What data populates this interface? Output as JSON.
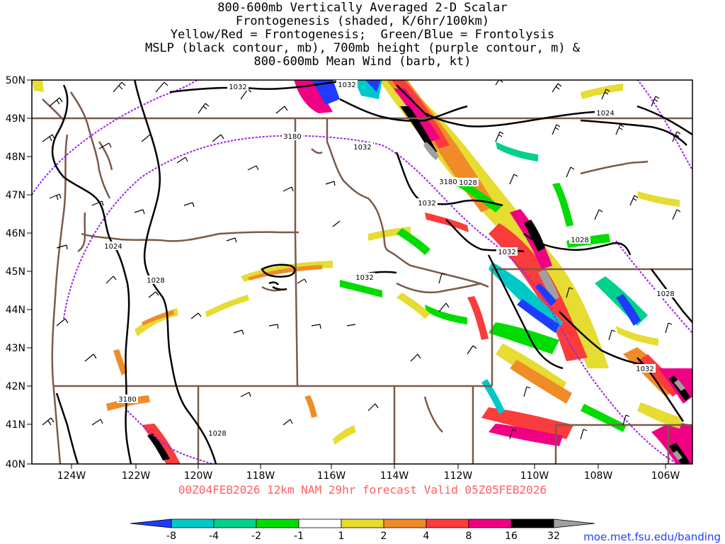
{
  "title_lines": [
    "800-600mb Vertically Averaged 2-D Scalar",
    "Frontogenesis (shaded, K/6hr/100km)",
    "Yellow/Red = Frontogenesis;  Green/Blue = Frontolysis",
    "MSLP (black contour, mb), 700mb height (purple contour, m) &",
    "800-600mb Mean Wind (barb, kt)"
  ],
  "lat_labels": [
    "50N",
    "49N",
    "48N",
    "47N",
    "46N",
    "45N",
    "44N",
    "43N",
    "42N",
    "41N",
    "40N"
  ],
  "lon_labels": [
    "124W",
    "122W",
    "120W",
    "118W",
    "116W",
    "114W",
    "112W",
    "110W",
    "108W",
    "106W"
  ],
  "contour_labels": {
    "mslp": [
      "1032",
      "1032",
      "1032",
      "1024",
      "1032",
      "1028",
      "1028",
      "1024",
      "1028",
      "1032",
      "1032",
      "1028",
      "1032",
      "1028"
    ],
    "height": [
      "3180",
      "3180",
      "3180"
    ]
  },
  "valid_text": "00Z04FEB2026 12km NAM 29hr forecast Valid 05Z05FEB2026",
  "colorbar": {
    "labels": [
      "-8",
      "-4",
      "-2",
      "-1",
      "1",
      "2",
      "4",
      "8",
      "16",
      "32"
    ],
    "colors": [
      "#1e3cff",
      "#00c8c8",
      "#00d28c",
      "#00dc00",
      "#ffffff",
      "#e6dc32",
      "#f08c28",
      "#fa3c3c",
      "#f00082",
      "#000000",
      "#a0a0a0"
    ]
  },
  "colors": {
    "state_border": "#7a5a48",
    "mslp_contour": "#000000",
    "height_contour": "#a020f0",
    "barb": "#000000"
  },
  "credit": "moe.met.fsu.edu/banding"
}
